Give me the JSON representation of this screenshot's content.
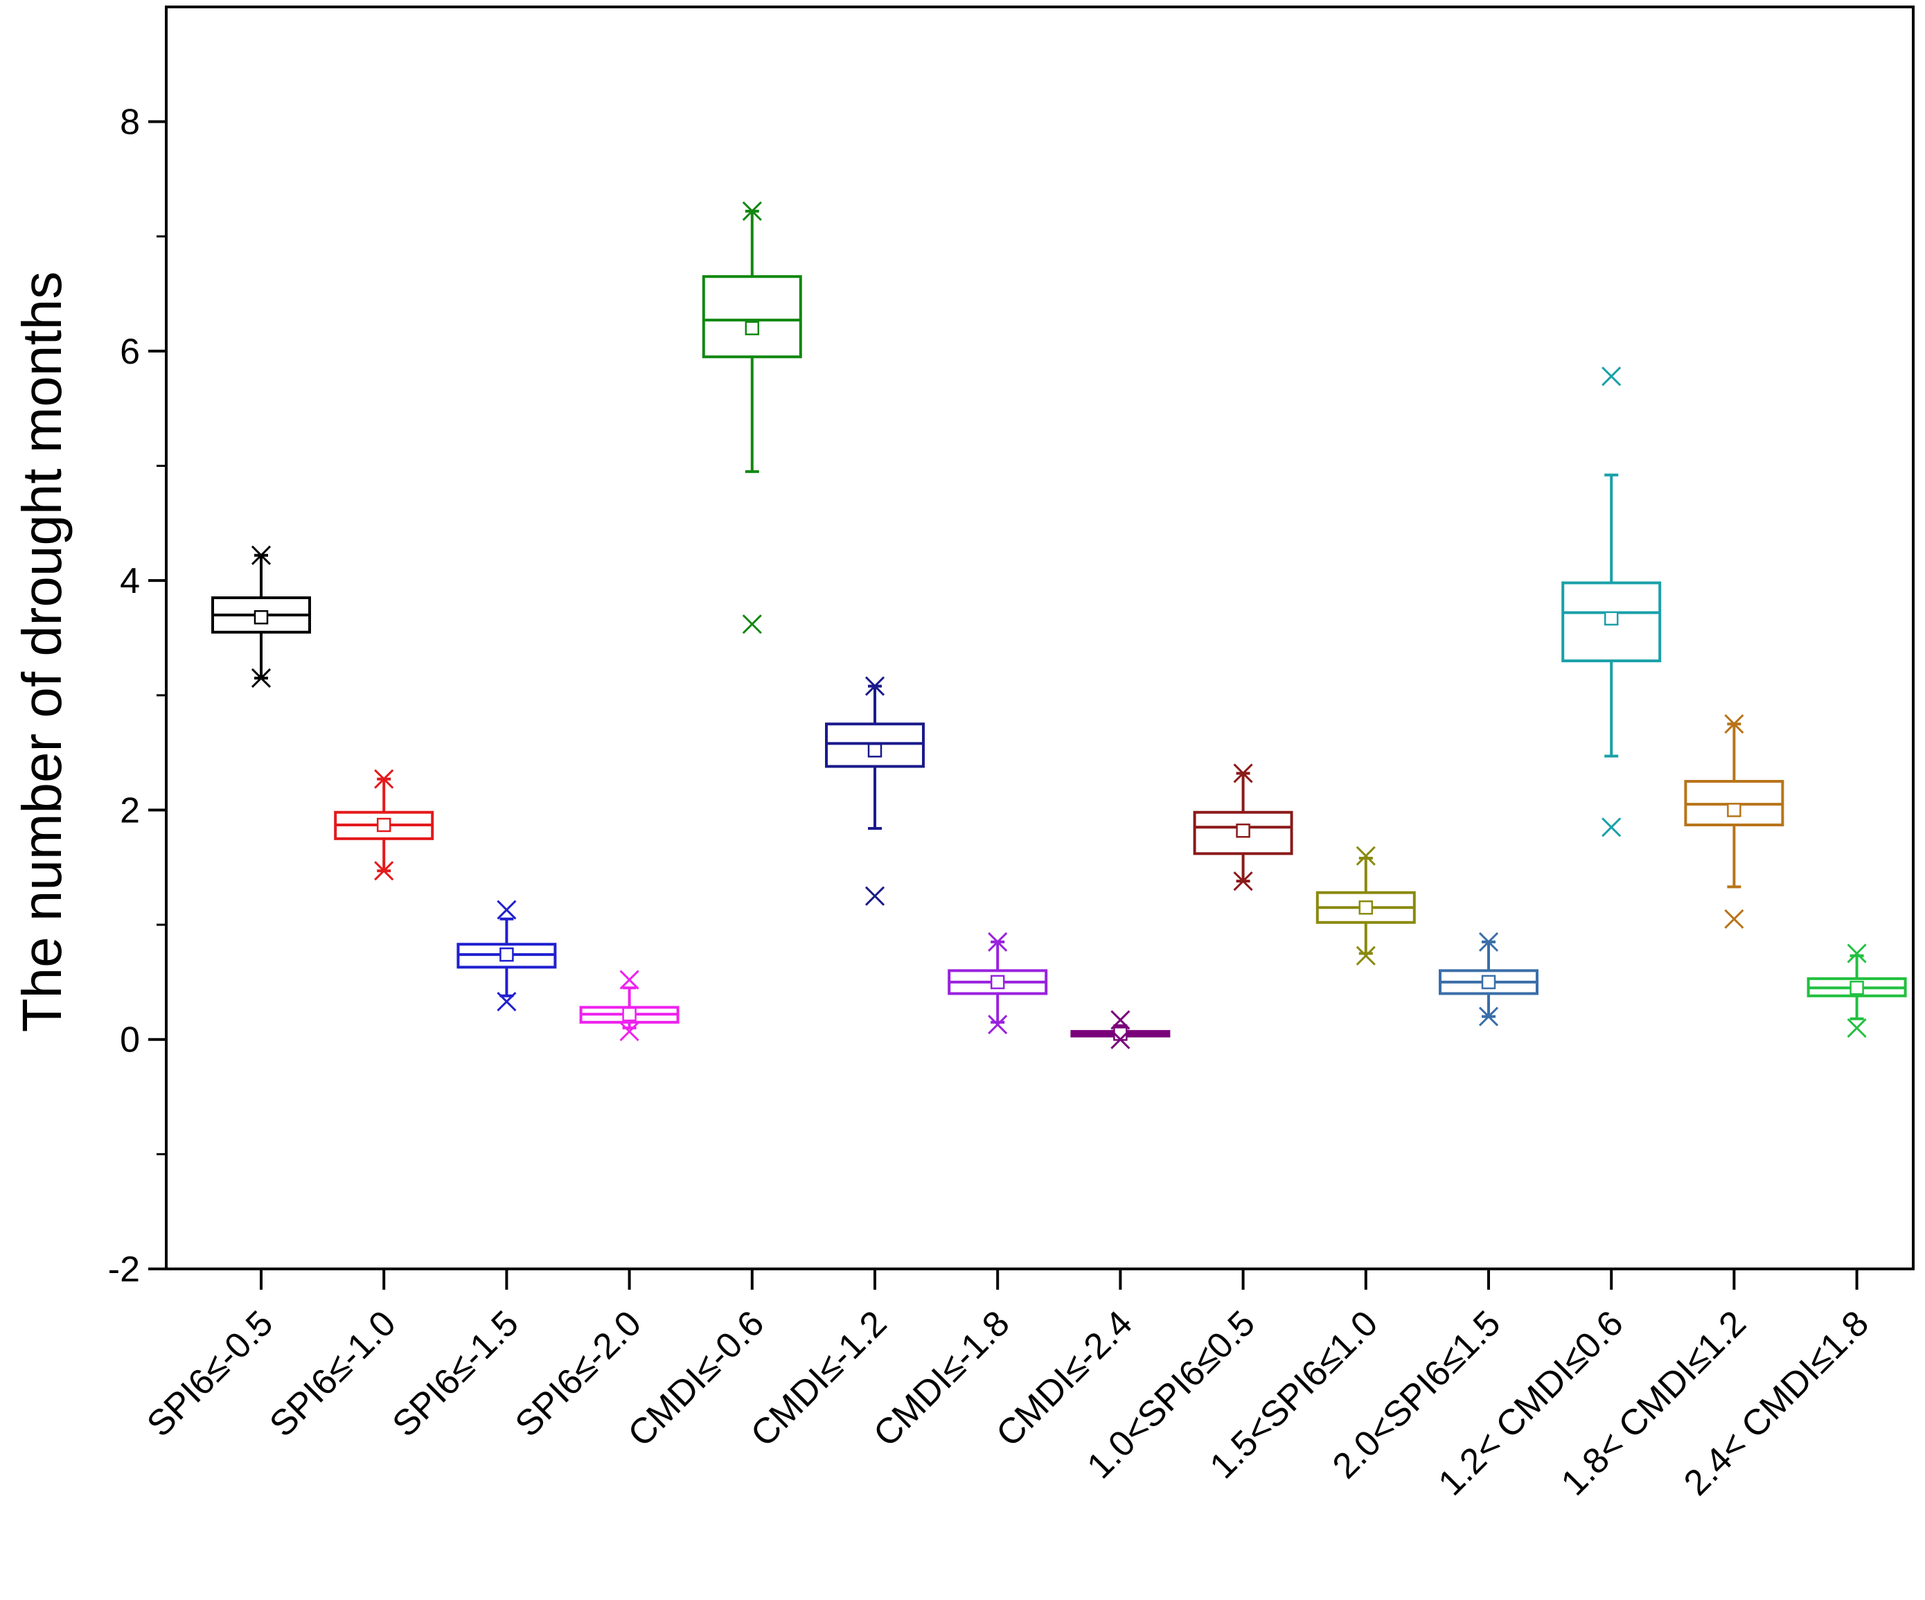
{
  "chart_data": {
    "type": "box",
    "title": "",
    "xlabel": "",
    "ylabel": "The number of drought months",
    "ylim": [
      -2,
      9
    ],
    "yticks": [
      -2,
      0,
      2,
      4,
      6,
      8
    ],
    "grid": false,
    "legend": "none",
    "categories": [
      "SPI6≤-0.5",
      "SPI6≤-1.0",
      "SPI6≤-1.5",
      "SPI6≤-2.0",
      "CMDI≤-0.6",
      "CMDI≤-1.2",
      "CMDI≤-1.8",
      "CMDI≤-2.4",
      "1.0<SPI6≤0.5",
      "1.5<SPI6≤1.0",
      "2.0<SPI6≤1.5",
      "1.2< CMDI≤0.6",
      "1.8< CMDI≤1.2",
      "2.4< CMDI≤1.8"
    ],
    "boxes": [
      {
        "whisker_low": 3.15,
        "q1": 3.55,
        "median": 3.7,
        "q3": 3.85,
        "whisker_high": 4.22,
        "mean": 3.68,
        "outliers": [
          3.15,
          4.22
        ],
        "color": "#000000"
      },
      {
        "whisker_low": 1.47,
        "q1": 1.75,
        "median": 1.87,
        "q3": 1.98,
        "whisker_high": 2.27,
        "mean": 1.87,
        "outliers": [
          1.47,
          2.27
        ],
        "color": "#e31a1c"
      },
      {
        "whisker_low": 0.38,
        "q1": 0.63,
        "median": 0.74,
        "q3": 0.83,
        "whisker_high": 1.05,
        "mean": 0.74,
        "outliers": [
          0.33,
          1.13
        ],
        "color": "#2020d0"
      },
      {
        "whisker_low": 0.1,
        "q1": 0.15,
        "median": 0.22,
        "q3": 0.28,
        "whisker_high": 0.45,
        "mean": 0.22,
        "outliers": [
          0.07,
          0.52
        ],
        "color": "#ee22ee"
      },
      {
        "whisker_low": 4.95,
        "q1": 5.95,
        "median": 6.27,
        "q3": 6.65,
        "whisker_high": 7.22,
        "mean": 6.2,
        "outliers": [
          3.62,
          7.22
        ],
        "color": "#118811"
      },
      {
        "whisker_low": 1.84,
        "q1": 2.38,
        "median": 2.58,
        "q3": 2.75,
        "whisker_high": 3.08,
        "mean": 2.52,
        "outliers": [
          1.25,
          3.08
        ],
        "color": "#1a1a8c"
      },
      {
        "whisker_low": 0.15,
        "q1": 0.4,
        "median": 0.5,
        "q3": 0.6,
        "whisker_high": 0.85,
        "mean": 0.5,
        "outliers": [
          0.13,
          0.85
        ],
        "color": "#9922dd"
      },
      {
        "whisker_low": 0.02,
        "q1": 0.03,
        "median": 0.05,
        "q3": 0.07,
        "whisker_high": 0.12,
        "mean": 0.05,
        "outliers": [
          0.0,
          0.17
        ],
        "color": "#7a007a"
      },
      {
        "whisker_low": 1.38,
        "q1": 1.62,
        "median": 1.85,
        "q3": 1.98,
        "whisker_high": 2.32,
        "mean": 1.82,
        "outliers": [
          1.38,
          2.32
        ],
        "color": "#8b1a1a"
      },
      {
        "whisker_low": 0.75,
        "q1": 1.02,
        "median": 1.15,
        "q3": 1.28,
        "whisker_high": 1.58,
        "mean": 1.15,
        "outliers": [
          0.73,
          1.6
        ],
        "color": "#8a8a10"
      },
      {
        "whisker_low": 0.2,
        "q1": 0.4,
        "median": 0.5,
        "q3": 0.6,
        "whisker_high": 0.85,
        "mean": 0.5,
        "outliers": [
          0.2,
          0.85
        ],
        "color": "#3a6ea8"
      },
      {
        "whisker_low": 2.47,
        "q1": 3.3,
        "median": 3.72,
        "q3": 3.98,
        "whisker_high": 4.92,
        "mean": 3.67,
        "outliers": [
          1.85,
          5.78
        ],
        "color": "#1aa0a8"
      },
      {
        "whisker_low": 1.33,
        "q1": 1.87,
        "median": 2.05,
        "q3": 2.25,
        "whisker_high": 2.75,
        "mean": 2.0,
        "outliers": [
          1.05,
          2.75
        ],
        "color": "#b8741a"
      },
      {
        "whisker_low": 0.18,
        "q1": 0.38,
        "median": 0.45,
        "q3": 0.53,
        "whisker_high": 0.73,
        "mean": 0.45,
        "outliers": [
          0.1,
          0.75
        ],
        "color": "#22c040"
      }
    ]
  }
}
